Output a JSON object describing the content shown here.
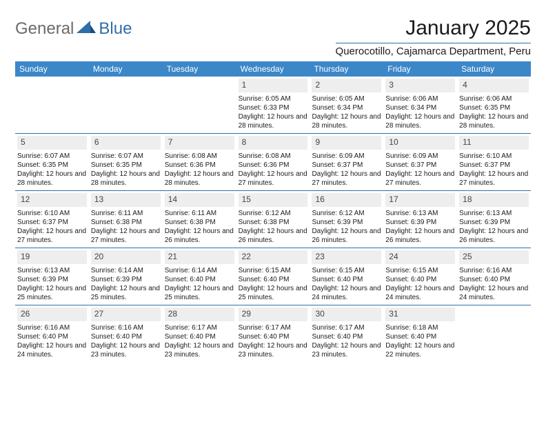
{
  "brand": {
    "general": "General",
    "blue": "Blue"
  },
  "title": "January 2025",
  "location": "Querocotillo, Cajamarca Department, Peru",
  "colors": {
    "header_bg": "#3b87c8",
    "header_text": "#ffffff",
    "accent_line": "#2f6ea8",
    "daynum_bg": "#eeeeee",
    "daynum_text": "#444444",
    "text": "#1a1a1a",
    "logo_gray": "#6a6a6a",
    "logo_blue": "#2f6ea8",
    "page_bg": "#ffffff"
  },
  "typography": {
    "title_fontsize": 30,
    "location_fontsize": 15,
    "weekday_fontsize": 12,
    "daynum_fontsize": 12,
    "cell_fontsize": 10,
    "logo_fontsize": 24
  },
  "layout": {
    "columns": 7,
    "cell_min_height": 82
  },
  "weekdays": [
    "Sunday",
    "Monday",
    "Tuesday",
    "Wednesday",
    "Thursday",
    "Friday",
    "Saturday"
  ],
  "weeks": [
    [
      null,
      null,
      null,
      {
        "n": "1",
        "sr": "6:05 AM",
        "ss": "6:33 PM",
        "dl": "12 hours and 28 minutes."
      },
      {
        "n": "2",
        "sr": "6:05 AM",
        "ss": "6:34 PM",
        "dl": "12 hours and 28 minutes."
      },
      {
        "n": "3",
        "sr": "6:06 AM",
        "ss": "6:34 PM",
        "dl": "12 hours and 28 minutes."
      },
      {
        "n": "4",
        "sr": "6:06 AM",
        "ss": "6:35 PM",
        "dl": "12 hours and 28 minutes."
      }
    ],
    [
      {
        "n": "5",
        "sr": "6:07 AM",
        "ss": "6:35 PM",
        "dl": "12 hours and 28 minutes."
      },
      {
        "n": "6",
        "sr": "6:07 AM",
        "ss": "6:35 PM",
        "dl": "12 hours and 28 minutes."
      },
      {
        "n": "7",
        "sr": "6:08 AM",
        "ss": "6:36 PM",
        "dl": "12 hours and 28 minutes."
      },
      {
        "n": "8",
        "sr": "6:08 AM",
        "ss": "6:36 PM",
        "dl": "12 hours and 27 minutes."
      },
      {
        "n": "9",
        "sr": "6:09 AM",
        "ss": "6:37 PM",
        "dl": "12 hours and 27 minutes."
      },
      {
        "n": "10",
        "sr": "6:09 AM",
        "ss": "6:37 PM",
        "dl": "12 hours and 27 minutes."
      },
      {
        "n": "11",
        "sr": "6:10 AM",
        "ss": "6:37 PM",
        "dl": "12 hours and 27 minutes."
      }
    ],
    [
      {
        "n": "12",
        "sr": "6:10 AM",
        "ss": "6:37 PM",
        "dl": "12 hours and 27 minutes."
      },
      {
        "n": "13",
        "sr": "6:11 AM",
        "ss": "6:38 PM",
        "dl": "12 hours and 27 minutes."
      },
      {
        "n": "14",
        "sr": "6:11 AM",
        "ss": "6:38 PM",
        "dl": "12 hours and 26 minutes."
      },
      {
        "n": "15",
        "sr": "6:12 AM",
        "ss": "6:38 PM",
        "dl": "12 hours and 26 minutes."
      },
      {
        "n": "16",
        "sr": "6:12 AM",
        "ss": "6:39 PM",
        "dl": "12 hours and 26 minutes."
      },
      {
        "n": "17",
        "sr": "6:13 AM",
        "ss": "6:39 PM",
        "dl": "12 hours and 26 minutes."
      },
      {
        "n": "18",
        "sr": "6:13 AM",
        "ss": "6:39 PM",
        "dl": "12 hours and 26 minutes."
      }
    ],
    [
      {
        "n": "19",
        "sr": "6:13 AM",
        "ss": "6:39 PM",
        "dl": "12 hours and 25 minutes."
      },
      {
        "n": "20",
        "sr": "6:14 AM",
        "ss": "6:39 PM",
        "dl": "12 hours and 25 minutes."
      },
      {
        "n": "21",
        "sr": "6:14 AM",
        "ss": "6:40 PM",
        "dl": "12 hours and 25 minutes."
      },
      {
        "n": "22",
        "sr": "6:15 AM",
        "ss": "6:40 PM",
        "dl": "12 hours and 25 minutes."
      },
      {
        "n": "23",
        "sr": "6:15 AM",
        "ss": "6:40 PM",
        "dl": "12 hours and 24 minutes."
      },
      {
        "n": "24",
        "sr": "6:15 AM",
        "ss": "6:40 PM",
        "dl": "12 hours and 24 minutes."
      },
      {
        "n": "25",
        "sr": "6:16 AM",
        "ss": "6:40 PM",
        "dl": "12 hours and 24 minutes."
      }
    ],
    [
      {
        "n": "26",
        "sr": "6:16 AM",
        "ss": "6:40 PM",
        "dl": "12 hours and 24 minutes."
      },
      {
        "n": "27",
        "sr": "6:16 AM",
        "ss": "6:40 PM",
        "dl": "12 hours and 23 minutes."
      },
      {
        "n": "28",
        "sr": "6:17 AM",
        "ss": "6:40 PM",
        "dl": "12 hours and 23 minutes."
      },
      {
        "n": "29",
        "sr": "6:17 AM",
        "ss": "6:40 PM",
        "dl": "12 hours and 23 minutes."
      },
      {
        "n": "30",
        "sr": "6:17 AM",
        "ss": "6:40 PM",
        "dl": "12 hours and 23 minutes."
      },
      {
        "n": "31",
        "sr": "6:18 AM",
        "ss": "6:40 PM",
        "dl": "12 hours and 22 minutes."
      },
      null
    ]
  ],
  "labels": {
    "sunrise": "Sunrise:",
    "sunset": "Sunset:",
    "daylight": "Daylight:"
  }
}
